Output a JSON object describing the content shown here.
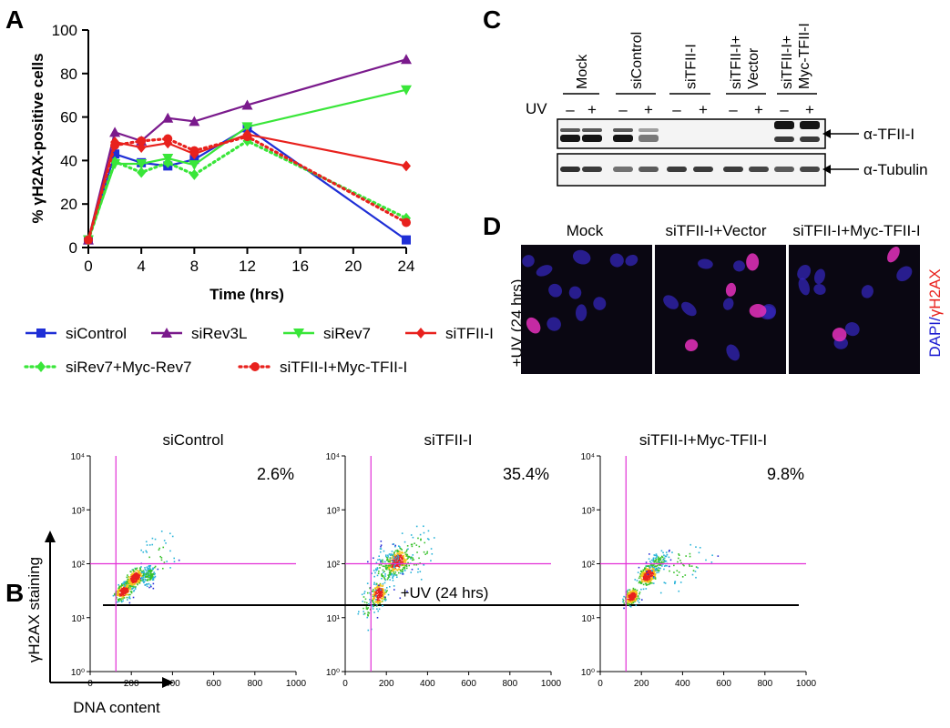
{
  "panels": {
    "A": "A",
    "B": "B",
    "C": "C",
    "D": "D"
  },
  "chart_data": [
    {
      "panel": "A",
      "type": "line",
      "xlabel": "Time (hrs)",
      "ylabel": "% γH2AX-positive cells",
      "xlim": [
        0,
        24
      ],
      "ylim": [
        0,
        100
      ],
      "xticks": [
        "0",
        "4",
        "8",
        "12",
        "16",
        "20",
        "24"
      ],
      "yticks": [
        "0",
        "20",
        "40",
        "60",
        "80",
        "100"
      ],
      "legend_position": "bottom",
      "series": [
        {
          "name": "siControl",
          "color": "#1f2fd6",
          "marker": "square",
          "dash": "solid",
          "x": [
            0,
            2,
            4,
            6,
            8,
            12,
            24
          ],
          "y": [
            3.5,
            43,
            39,
            37.5,
            40.5,
            55,
            3.5
          ]
        },
        {
          "name": "siRev3L",
          "color": "#7a1a8c",
          "marker": "triangle-up",
          "dash": "solid",
          "x": [
            0,
            2,
            4,
            6,
            8,
            12,
            24
          ],
          "y": [
            3.5,
            53,
            49,
            59.5,
            58,
            65.5,
            86.5
          ]
        },
        {
          "name": "siRev7",
          "color": "#39e639",
          "marker": "triangle-down",
          "dash": "solid",
          "x": [
            0,
            2,
            4,
            6,
            8,
            12,
            24
          ],
          "y": [
            3.5,
            38.5,
            38.5,
            41,
            38,
            55.5,
            72.5
          ]
        },
        {
          "name": "siTFII-I",
          "color": "#e8211d",
          "marker": "diamond",
          "dash": "solid",
          "x": [
            0,
            2,
            4,
            6,
            8,
            12,
            24
          ],
          "y": [
            3.5,
            48.5,
            46,
            48,
            43,
            52,
            37.5
          ]
        },
        {
          "name": "siRev7+Myc-Rev7",
          "color": "#39e639",
          "marker": "diamond",
          "dash": "dotted",
          "x": [
            0,
            2,
            4,
            6,
            8,
            12,
            24
          ],
          "y": [
            3.5,
            39.5,
            34.5,
            39,
            33.5,
            49,
            13.5
          ]
        },
        {
          "name": "siTFII-I+Myc-TFII-I",
          "color": "#e8211d",
          "marker": "circle",
          "dash": "dotted",
          "x": [
            0,
            2,
            4,
            6,
            8,
            12,
            24
          ],
          "y": [
            3.5,
            47,
            49,
            50,
            44.5,
            51,
            11.5
          ]
        }
      ]
    },
    {
      "panel": "B",
      "type": "scatter",
      "header": "+UV (24 hrs)",
      "xlabel": "DNA content",
      "ylabel": "γH2AX staining",
      "xlim": [
        0,
        1000
      ],
      "ylog": true,
      "ylim": [
        1,
        10000
      ],
      "xticks": [
        "0",
        "200",
        "400",
        "600",
        "800",
        "1000"
      ],
      "yticks": [
        "10⁰",
        "10¹",
        "10²",
        "10³",
        "10⁴"
      ],
      "gate_x": 125,
      "gate_y": 100,
      "plots": [
        {
          "title": "siControl",
          "percent": "2.6%"
        },
        {
          "title": "siTFII-I",
          "percent": "35.4%"
        },
        {
          "title": "siTFII-I+Myc-TFII-I",
          "percent": "9.8%"
        }
      ]
    }
  ],
  "western_blot": {
    "uv_label": "UV",
    "lane_groups": [
      "Mock",
      "siControl",
      "siTFII-I",
      "siTFII-I+ Vector",
      "siTFII-I+ Myc-TFII-I"
    ],
    "uv_marks": [
      "–",
      "+",
      "–",
      "+",
      "–",
      "+",
      "–",
      "+",
      "–",
      "+"
    ],
    "bands": [
      "α-TFII-I",
      "α-Tubulin"
    ]
  },
  "microscopy": {
    "side_label": "+UV (24 hrs)",
    "stain_label_dapi": "DAPI/",
    "stain_label_h2ax": "γH2AX",
    "panels": [
      "Mock",
      "siTFII-I+Vector",
      "siTFII-I+Myc-TFII-I"
    ]
  }
}
